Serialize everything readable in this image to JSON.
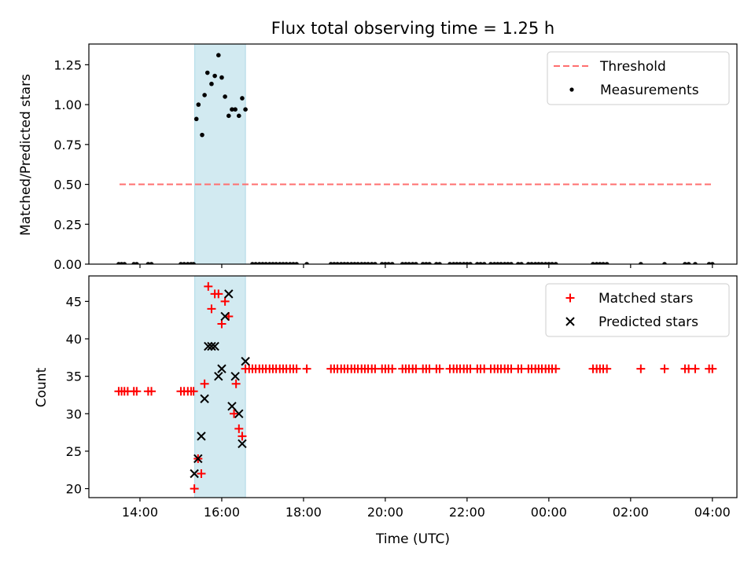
{
  "chart_data": [
    {
      "type": "line",
      "title": "Flux total observing time = 1.25 h",
      "xlabel": "",
      "ylabel": "Matched/Predicted stars",
      "x_unit": "hours, continuing past midnight",
      "xlim": [
        12.75,
        28.6
      ],
      "ylim": [
        0.0,
        1.38
      ],
      "yticks": [
        0.0,
        0.25,
        0.5,
        0.75,
        1.0,
        1.25
      ],
      "ytick_labels": [
        "0.00",
        "0.25",
        "0.50",
        "0.75",
        "1.00",
        "1.25"
      ],
      "xticks": [
        14,
        16,
        18,
        20,
        22,
        24,
        26,
        28
      ],
      "show_xtick_labels": false,
      "shaded_span": {
        "x": [
          15.34,
          16.58
        ],
        "color": "#add8e6"
      },
      "series": [
        {
          "name": "Threshold",
          "kind": "dashed-line",
          "color": "#ff6f6f",
          "x": [
            13.5,
            28.0
          ],
          "y": [
            0.5,
            0.5
          ]
        },
        {
          "name": "Measurements",
          "kind": "scatter",
          "color": "#000000",
          "x": [
            13.48,
            13.55,
            13.62,
            13.85,
            13.92,
            14.2,
            14.28,
            15.0,
            15.08,
            15.17,
            15.25,
            15.31,
            15.38,
            15.43,
            15.52,
            15.58,
            15.65,
            15.75,
            15.83,
            15.92,
            16.0,
            16.08,
            16.17,
            16.25,
            16.33,
            16.42,
            16.5,
            16.58,
            16.75,
            16.83,
            16.92,
            17.0,
            17.08,
            17.17,
            17.25,
            17.33,
            17.42,
            17.5,
            17.58,
            17.67,
            17.75,
            17.83,
            18.08,
            18.67,
            18.75,
            18.83,
            18.92,
            19.0,
            19.08,
            19.17,
            19.25,
            19.33,
            19.42,
            19.5,
            19.58,
            19.67,
            19.75,
            19.92,
            20.0,
            20.08,
            20.17,
            20.42,
            20.5,
            20.58,
            20.67,
            20.75,
            20.92,
            21.0,
            21.08,
            21.25,
            21.33,
            21.58,
            21.67,
            21.75,
            21.83,
            21.92,
            22.0,
            22.08,
            22.25,
            22.33,
            22.42,
            22.58,
            22.67,
            22.75,
            22.83,
            22.92,
            23.0,
            23.08,
            23.25,
            23.33,
            23.5,
            23.58,
            23.67,
            23.75,
            23.83,
            23.92,
            24.0,
            24.08,
            24.17,
            25.08,
            25.17,
            25.25,
            25.33,
            25.42,
            26.25,
            26.83,
            27.33,
            27.42,
            27.58,
            27.92,
            28.0
          ],
          "y": [
            0,
            0,
            0,
            0,
            0,
            0,
            0,
            0,
            0,
            0,
            0,
            0,
            0.91,
            1.0,
            0.81,
            1.06,
            1.2,
            1.13,
            1.18,
            1.31,
            1.17,
            1.05,
            0.93,
            0.97,
            0.97,
            0.93,
            1.04,
            0.97,
            0,
            0,
            0,
            0,
            0,
            0,
            0,
            0,
            0,
            0,
            0,
            0,
            0,
            0,
            0,
            0,
            0,
            0,
            0,
            0,
            0,
            0,
            0,
            0,
            0,
            0,
            0,
            0,
            0,
            0,
            0,
            0,
            0,
            0,
            0,
            0,
            0,
            0,
            0,
            0,
            0,
            0,
            0,
            0,
            0,
            0,
            0,
            0,
            0,
            0,
            0,
            0,
            0,
            0,
            0,
            0,
            0,
            0,
            0,
            0,
            0,
            0,
            0,
            0,
            0,
            0,
            0,
            0,
            0,
            0,
            0,
            0,
            0,
            0,
            0,
            0,
            0,
            0,
            0,
            0,
            0,
            0,
            0
          ]
        }
      ],
      "legend": {
        "position": "top-right"
      }
    },
    {
      "type": "scatter",
      "title": "",
      "xlabel": "Time (UTC)",
      "ylabel": "Count",
      "x_unit": "hours, continuing past midnight",
      "xlim": [
        12.75,
        28.6
      ],
      "ylim": [
        18.8,
        48.4
      ],
      "yticks": [
        20,
        25,
        30,
        35,
        40,
        45
      ],
      "ytick_labels": [
        "20",
        "25",
        "30",
        "35",
        "40",
        "45"
      ],
      "xticks": [
        14,
        16,
        18,
        20,
        22,
        24,
        26,
        28
      ],
      "xtick_labels": [
        "14:00",
        "16:00",
        "18:00",
        "20:00",
        "22:00",
        "00:00",
        "02:00",
        "04:00"
      ],
      "shaded_span": {
        "x": [
          15.34,
          16.58
        ],
        "color": "#add8e6"
      },
      "series": [
        {
          "name": "Matched stars",
          "marker": "plus",
          "color": "#ff0000",
          "x": [
            13.48,
            13.55,
            13.62,
            13.7,
            13.85,
            13.92,
            14.2,
            14.28,
            15.0,
            15.08,
            15.17,
            15.25,
            15.31,
            15.33,
            15.42,
            15.5,
            15.58,
            15.67,
            15.75,
            15.83,
            15.92,
            16.0,
            16.08,
            16.17,
            16.3,
            16.35,
            16.42,
            16.5,
            16.58,
            16.67,
            16.75,
            16.83,
            16.92,
            17.0,
            17.08,
            17.17,
            17.25,
            17.33,
            17.42,
            17.5,
            17.58,
            17.67,
            17.75,
            17.83,
            18.08,
            18.67,
            18.75,
            18.83,
            18.92,
            19.0,
            19.08,
            19.17,
            19.25,
            19.33,
            19.42,
            19.5,
            19.58,
            19.67,
            19.75,
            19.92,
            20.0,
            20.08,
            20.17,
            20.42,
            20.5,
            20.58,
            20.67,
            20.75,
            20.92,
            21.0,
            21.08,
            21.25,
            21.33,
            21.58,
            21.67,
            21.75,
            21.83,
            21.92,
            22.0,
            22.08,
            22.25,
            22.33,
            22.42,
            22.58,
            22.67,
            22.75,
            22.83,
            22.92,
            23.0,
            23.08,
            23.25,
            23.33,
            23.5,
            23.58,
            23.67,
            23.75,
            23.83,
            23.92,
            24.0,
            24.08,
            24.17,
            25.08,
            25.17,
            25.25,
            25.33,
            25.42,
            26.25,
            26.83,
            27.33,
            27.42,
            27.58,
            27.92,
            28.0
          ],
          "y": [
            33,
            33,
            33,
            33,
            33,
            33,
            33,
            33,
            33,
            33,
            33,
            33,
            33,
            20,
            24,
            22,
            34,
            47,
            44,
            46,
            46,
            42,
            45,
            43,
            30,
            34,
            28,
            27,
            36,
            36,
            36,
            36,
            36,
            36,
            36,
            36,
            36,
            36,
            36,
            36,
            36,
            36,
            36,
            36,
            36,
            36,
            36,
            36,
            36,
            36,
            36,
            36,
            36,
            36,
            36,
            36,
            36,
            36,
            36,
            36,
            36,
            36,
            36,
            36,
            36,
            36,
            36,
            36,
            36,
            36,
            36,
            36,
            36,
            36,
            36,
            36,
            36,
            36,
            36,
            36,
            36,
            36,
            36,
            36,
            36,
            36,
            36,
            36,
            36,
            36,
            36,
            36,
            36,
            36,
            36,
            36,
            36,
            36,
            36,
            36,
            36,
            36,
            36,
            36,
            36,
            36,
            36,
            36,
            36,
            36,
            36,
            36,
            36
          ]
        },
        {
          "name": "Predicted stars",
          "marker": "x",
          "color": "#000000",
          "x": [
            15.33,
            15.42,
            15.5,
            15.58,
            15.67,
            15.75,
            15.83,
            15.92,
            16.0,
            16.08,
            16.17,
            16.25,
            16.33,
            16.42,
            16.5,
            16.58
          ],
          "y": [
            22,
            24,
            27,
            32,
            39,
            39,
            39,
            35,
            36,
            43,
            46,
            31,
            35,
            30,
            26,
            37
          ]
        }
      ],
      "legend": {
        "position": "top-right"
      }
    }
  ]
}
